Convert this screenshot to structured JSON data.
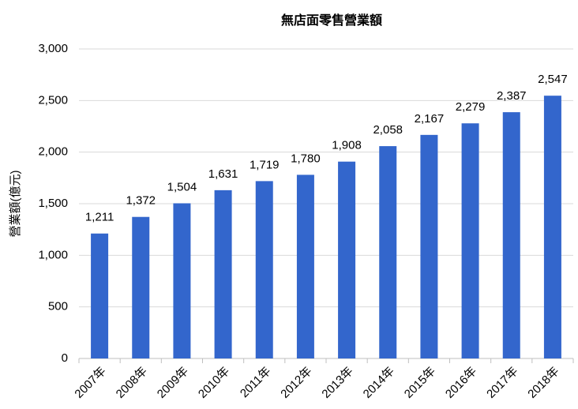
{
  "chart_data": {
    "type": "bar",
    "title": "無店面零售營業額",
    "y_label": "營業額(億元)",
    "categories": [
      "2007年",
      "2008年",
      "2009年",
      "2010年",
      "2011年",
      "2012年",
      "2013年",
      "2014年",
      "2015年",
      "2016年",
      "2017年",
      "2018年"
    ],
    "values": [
      1211,
      1372,
      1504,
      1631,
      1719,
      1780,
      1908,
      2058,
      2167,
      2279,
      2387,
      2547
    ],
    "value_labels": [
      "1,211",
      "1,372",
      "1,504",
      "1,631",
      "1,719",
      "1,780",
      "1,908",
      "2,058",
      "2,167",
      "2,279",
      "2,387",
      "2,547"
    ],
    "color": "#3366cc",
    "ylim": [
      0,
      3000
    ],
    "yticks": [
      0,
      500,
      {
        "value": 1000,
        "label": "1,000"
      },
      {
        "value": 1500,
        "label": "1,500"
      },
      {
        "value": 2000,
        "label": "2,000"
      },
      {
        "value": 2500,
        "label": "2,500"
      },
      {
        "value": 3000,
        "label": "3,000"
      }
    ],
    "grid": true
  }
}
